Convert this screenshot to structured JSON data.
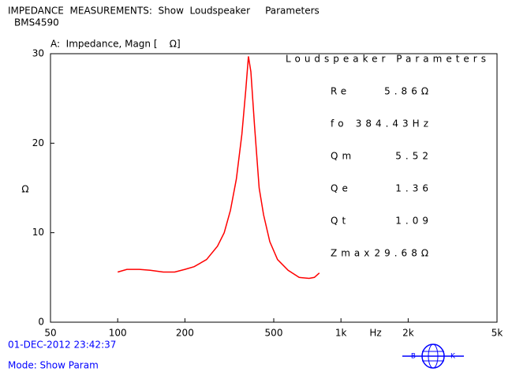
{
  "header": {
    "title": "IMPEDANCE  MEASUREMENTS:  Show  Loudspeaker     Parameters",
    "subtitle": "BMS4590"
  },
  "chart_data": {
    "type": "line",
    "title": "A:  Impedance, Magn [    Ω]",
    "y_label": "Ω",
    "x_label": "Hz",
    "log_x": true,
    "xlim": [
      50,
      5000
    ],
    "xticks": [
      50,
      100,
      200,
      500,
      {
        "value": 1000,
        "label": "1k"
      },
      {
        "value": 2000,
        "label": "2k"
      },
      {
        "value": 5000,
        "label": "5k"
      }
    ],
    "ylim": [
      0,
      30
    ],
    "yticks": [
      0,
      10,
      20,
      30
    ],
    "x": [
      100,
      110,
      125,
      140,
      160,
      180,
      200,
      220,
      250,
      280,
      300,
      320,
      340,
      360,
      375,
      385,
      395,
      410,
      430,
      450,
      480,
      520,
      580,
      650,
      720,
      760,
      800
    ],
    "series": [
      {
        "name": "Impedance",
        "color": "#ff0000",
        "values": [
          5.6,
          5.9,
          5.9,
          5.8,
          5.6,
          5.6,
          5.9,
          6.2,
          7.0,
          8.5,
          10.0,
          12.5,
          16.0,
          21.0,
          26.0,
          29.7,
          28.0,
          22.0,
          15.0,
          12.0,
          9.0,
          7.0,
          5.8,
          5.0,
          4.9,
          5.0,
          5.5
        ]
      }
    ],
    "parameters": {
      "title": "Loudspeaker  Parameters",
      "rows": [
        [
          "Re",
          "5.86Ω"
        ],
        [
          "fo",
          "384.43Hz"
        ],
        [
          "Qm",
          "5.52"
        ],
        [
          "Qe",
          "1.36"
        ],
        [
          "Qt",
          "1.09"
        ],
        [
          "Zmax",
          "29.68Ω"
        ]
      ]
    }
  },
  "footer": {
    "timestamp": "01-DEC-2012 23:42:37",
    "mode": "Mode: Show Param",
    "logo_left": "B",
    "logo_right": "K"
  }
}
